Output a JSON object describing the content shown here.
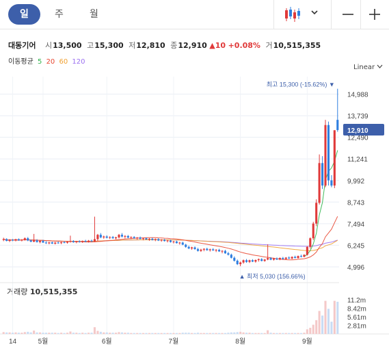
{
  "tabs": [
    {
      "label": "일",
      "active": true
    },
    {
      "label": "주",
      "active": false
    },
    {
      "label": "월",
      "active": false
    }
  ],
  "controls": {
    "chart_type_icon": "candlestick-icon",
    "chevron_icon": "chevron-down-icon",
    "minus_icon": "minus-icon",
    "plus_icon": "plus-icon"
  },
  "stock": {
    "name": "대동기어",
    "open_label": "시",
    "open": "13,500",
    "high_label": "고",
    "high": "15,300",
    "low_label": "저",
    "low": "12,810",
    "close_label": "종",
    "close": "12,910",
    "change": "▲10",
    "change_pct": "+0.08%",
    "volume_label": "거",
    "volume": "10,515,355"
  },
  "ma_legend": {
    "label": "이동평균",
    "items": [
      {
        "name": "5",
        "color": "#2db24a"
      },
      {
        "name": "20",
        "color": "#e8452f"
      },
      {
        "name": "60",
        "color": "#f0a030"
      },
      {
        "name": "120",
        "color": "#9a6ff0"
      }
    ]
  },
  "scale_mode": "Linear",
  "colors": {
    "up": "#e03a3a",
    "down": "#2f7fe0",
    "price_tag": "#3d5faa",
    "grid": "#e9eef5"
  },
  "chart_data": {
    "type": "candlestick",
    "x_ticks": [
      {
        "label": "14",
        "index": 3
      },
      {
        "label": "5월",
        "index": 13
      },
      {
        "label": "6월",
        "index": 34
      },
      {
        "label": "7월",
        "index": 56
      },
      {
        "label": "8월",
        "index": 78
      },
      {
        "label": "9월",
        "index": 100
      }
    ],
    "y_ticks": [
      14988,
      13739,
      12490,
      11241,
      9992,
      8743,
      7494,
      6245,
      4996
    ],
    "ylim": [
      4400,
      16000
    ],
    "vol_ticks": [
      {
        "label": "11.2m",
        "value": 11.2
      },
      {
        "label": "8.42m",
        "value": 8.42
      },
      {
        "label": "5.61m",
        "value": 5.61
      },
      {
        "label": "2.81m",
        "value": 2.81
      }
    ],
    "vol_max": 12.5,
    "current_price_label": "12,910",
    "current_price": 12910,
    "high_note": {
      "text": "최고 15,300 (-15.62%)",
      "value": 15300
    },
    "low_note": {
      "text": "최저 5,030 (156.66%)",
      "value": 5030
    },
    "volume_title": "거래량",
    "volume_value": "10,515,355",
    "candles": [
      {
        "o": 6550,
        "h": 6680,
        "l": 6480,
        "c": 6600,
        "v": 0.6
      },
      {
        "o": 6600,
        "h": 6650,
        "l": 6470,
        "c": 6500,
        "v": 0.5
      },
      {
        "o": 6500,
        "h": 6600,
        "l": 6430,
        "c": 6560,
        "v": 0.5
      },
      {
        "o": 6560,
        "h": 6610,
        "l": 6480,
        "c": 6520,
        "v": 0.4
      },
      {
        "o": 6520,
        "h": 6620,
        "l": 6470,
        "c": 6590,
        "v": 0.5
      },
      {
        "o": 6590,
        "h": 6640,
        "l": 6500,
        "c": 6530,
        "v": 0.4
      },
      {
        "o": 6530,
        "h": 6600,
        "l": 6470,
        "c": 6560,
        "v": 0.4
      },
      {
        "o": 6560,
        "h": 6700,
        "l": 6510,
        "c": 6650,
        "v": 0.6
      },
      {
        "o": 6650,
        "h": 6720,
        "l": 6480,
        "c": 6520,
        "v": 0.7
      },
      {
        "o": 6520,
        "h": 6580,
        "l": 6420,
        "c": 6450,
        "v": 0.5
      },
      {
        "o": 6450,
        "h": 6900,
        "l": 6420,
        "c": 6530,
        "v": 1.1
      },
      {
        "o": 6530,
        "h": 6600,
        "l": 6400,
        "c": 6430,
        "v": 0.5
      },
      {
        "o": 6430,
        "h": 6550,
        "l": 6360,
        "c": 6500,
        "v": 0.5
      },
      {
        "o": 6500,
        "h": 6560,
        "l": 6380,
        "c": 6400,
        "v": 0.4
      },
      {
        "o": 6400,
        "h": 6480,
        "l": 6320,
        "c": 6360,
        "v": 0.4
      },
      {
        "o": 6360,
        "h": 6440,
        "l": 6300,
        "c": 6410,
        "v": 0.4
      },
      {
        "o": 6410,
        "h": 6460,
        "l": 6320,
        "c": 6340,
        "v": 0.4
      },
      {
        "o": 6340,
        "h": 6430,
        "l": 6290,
        "c": 6400,
        "v": 0.4
      },
      {
        "o": 6400,
        "h": 6460,
        "l": 6330,
        "c": 6370,
        "v": 0.3
      },
      {
        "o": 6370,
        "h": 6450,
        "l": 6310,
        "c": 6420,
        "v": 0.4
      },
      {
        "o": 6420,
        "h": 6490,
        "l": 6360,
        "c": 6390,
        "v": 0.3
      },
      {
        "o": 6390,
        "h": 6470,
        "l": 6340,
        "c": 6440,
        "v": 0.4
      },
      {
        "o": 6440,
        "h": 6800,
        "l": 6400,
        "c": 6480,
        "v": 0.8
      },
      {
        "o": 6480,
        "h": 6540,
        "l": 6390,
        "c": 6420,
        "v": 0.4
      },
      {
        "o": 6420,
        "h": 6500,
        "l": 6360,
        "c": 6470,
        "v": 0.4
      },
      {
        "o": 6470,
        "h": 6530,
        "l": 6400,
        "c": 6430,
        "v": 0.3
      },
      {
        "o": 6430,
        "h": 6520,
        "l": 6380,
        "c": 6490,
        "v": 0.4
      },
      {
        "o": 6490,
        "h": 6560,
        "l": 6420,
        "c": 6450,
        "v": 0.3
      },
      {
        "o": 6450,
        "h": 6550,
        "l": 6400,
        "c": 6510,
        "v": 0.4
      },
      {
        "o": 6510,
        "h": 6570,
        "l": 6440,
        "c": 6470,
        "v": 0.4
      },
      {
        "o": 6470,
        "h": 7900,
        "l": 6430,
        "c": 6600,
        "v": 2.2
      },
      {
        "o": 6600,
        "h": 6900,
        "l": 6500,
        "c": 6850,
        "v": 1.0
      },
      {
        "o": 6850,
        "h": 6950,
        "l": 6650,
        "c": 6700,
        "v": 0.7
      },
      {
        "o": 6700,
        "h": 6800,
        "l": 6620,
        "c": 6750,
        "v": 0.5
      },
      {
        "o": 6750,
        "h": 6820,
        "l": 6640,
        "c": 6680,
        "v": 0.5
      },
      {
        "o": 6680,
        "h": 6760,
        "l": 6600,
        "c": 6720,
        "v": 0.4
      },
      {
        "o": 6720,
        "h": 6780,
        "l": 6620,
        "c": 6650,
        "v": 0.4
      },
      {
        "o": 6650,
        "h": 6740,
        "l": 6580,
        "c": 6700,
        "v": 0.4
      },
      {
        "o": 6700,
        "h": 6900,
        "l": 6640,
        "c": 6850,
        "v": 0.6
      },
      {
        "o": 6850,
        "h": 6950,
        "l": 6700,
        "c": 6750,
        "v": 0.5
      },
      {
        "o": 6750,
        "h": 6830,
        "l": 6640,
        "c": 6780,
        "v": 0.4
      },
      {
        "o": 6780,
        "h": 6840,
        "l": 6650,
        "c": 6690,
        "v": 0.4
      },
      {
        "o": 6690,
        "h": 6760,
        "l": 6600,
        "c": 6720,
        "v": 0.3
      },
      {
        "o": 6720,
        "h": 6770,
        "l": 6620,
        "c": 6650,
        "v": 0.3
      },
      {
        "o": 6650,
        "h": 6720,
        "l": 6570,
        "c": 6690,
        "v": 0.3
      },
      {
        "o": 6690,
        "h": 6750,
        "l": 6590,
        "c": 6610,
        "v": 0.3
      },
      {
        "o": 6610,
        "h": 6680,
        "l": 6530,
        "c": 6650,
        "v": 0.3
      },
      {
        "o": 6650,
        "h": 6700,
        "l": 6560,
        "c": 6580,
        "v": 0.3
      },
      {
        "o": 6580,
        "h": 6660,
        "l": 6500,
        "c": 6620,
        "v": 0.3
      },
      {
        "o": 6620,
        "h": 6680,
        "l": 6520,
        "c": 6550,
        "v": 0.3
      },
      {
        "o": 6550,
        "h": 6640,
        "l": 6480,
        "c": 6600,
        "v": 0.3
      },
      {
        "o": 6600,
        "h": 6650,
        "l": 6490,
        "c": 6520,
        "v": 0.3
      },
      {
        "o": 6520,
        "h": 6600,
        "l": 6450,
        "c": 6560,
        "v": 0.3
      },
      {
        "o": 6560,
        "h": 6610,
        "l": 6460,
        "c": 6490,
        "v": 0.3
      },
      {
        "o": 6490,
        "h": 6560,
        "l": 6410,
        "c": 6520,
        "v": 0.3
      },
      {
        "o": 6520,
        "h": 6570,
        "l": 6400,
        "c": 6430,
        "v": 0.3
      },
      {
        "o": 6430,
        "h": 6500,
        "l": 6350,
        "c": 6460,
        "v": 0.3
      },
      {
        "o": 6460,
        "h": 6510,
        "l": 6340,
        "c": 6370,
        "v": 0.3
      },
      {
        "o": 6370,
        "h": 6440,
        "l": 6280,
        "c": 6400,
        "v": 0.3
      },
      {
        "o": 6400,
        "h": 6450,
        "l": 6250,
        "c": 6280,
        "v": 0.4
      },
      {
        "o": 6280,
        "h": 6330,
        "l": 6100,
        "c": 6150,
        "v": 0.4
      },
      {
        "o": 6150,
        "h": 6220,
        "l": 6020,
        "c": 6060,
        "v": 0.4
      },
      {
        "o": 6060,
        "h": 6160,
        "l": 5980,
        "c": 6120,
        "v": 0.3
      },
      {
        "o": 6120,
        "h": 6180,
        "l": 5990,
        "c": 6020,
        "v": 0.3
      },
      {
        "o": 6020,
        "h": 6100,
        "l": 5880,
        "c": 5920,
        "v": 0.4
      },
      {
        "o": 5920,
        "h": 6040,
        "l": 5860,
        "c": 5990,
        "v": 0.3
      },
      {
        "o": 5990,
        "h": 6070,
        "l": 5900,
        "c": 6040,
        "v": 0.3
      },
      {
        "o": 6040,
        "h": 6100,
        "l": 5930,
        "c": 5960,
        "v": 0.3
      },
      {
        "o": 5960,
        "h": 6050,
        "l": 5880,
        "c": 6010,
        "v": 0.3
      },
      {
        "o": 6010,
        "h": 6080,
        "l": 5920,
        "c": 5950,
        "v": 0.3
      },
      {
        "o": 5950,
        "h": 6020,
        "l": 5850,
        "c": 5980,
        "v": 0.3
      },
      {
        "o": 5980,
        "h": 6040,
        "l": 5860,
        "c": 5890,
        "v": 0.3
      },
      {
        "o": 5890,
        "h": 5960,
        "l": 5780,
        "c": 5920,
        "v": 0.3
      },
      {
        "o": 5920,
        "h": 5980,
        "l": 5750,
        "c": 5780,
        "v": 0.3
      },
      {
        "o": 5780,
        "h": 5860,
        "l": 5650,
        "c": 5700,
        "v": 0.4
      },
      {
        "o": 5700,
        "h": 5760,
        "l": 5480,
        "c": 5520,
        "v": 0.5
      },
      {
        "o": 5520,
        "h": 5600,
        "l": 5300,
        "c": 5350,
        "v": 0.5
      },
      {
        "o": 5350,
        "h": 5420,
        "l": 5100,
        "c": 5150,
        "v": 0.6
      },
      {
        "o": 5150,
        "h": 5300,
        "l": 5030,
        "c": 5250,
        "v": 0.7
      },
      {
        "o": 5250,
        "h": 5420,
        "l": 5180,
        "c": 5380,
        "v": 0.5
      },
      {
        "o": 5380,
        "h": 5450,
        "l": 5230,
        "c": 5280,
        "v": 0.4
      },
      {
        "o": 5280,
        "h": 5410,
        "l": 5220,
        "c": 5380,
        "v": 0.4
      },
      {
        "o": 5380,
        "h": 5440,
        "l": 5270,
        "c": 5300,
        "v": 0.3
      },
      {
        "o": 5300,
        "h": 5420,
        "l": 5240,
        "c": 5390,
        "v": 0.3
      },
      {
        "o": 5390,
        "h": 5480,
        "l": 5300,
        "c": 5440,
        "v": 0.3
      },
      {
        "o": 5440,
        "h": 5500,
        "l": 5310,
        "c": 5340,
        "v": 0.3
      },
      {
        "o": 5340,
        "h": 5450,
        "l": 5290,
        "c": 5420,
        "v": 0.3
      },
      {
        "o": 5420,
        "h": 6300,
        "l": 5380,
        "c": 5500,
        "v": 1.2
      },
      {
        "o": 5500,
        "h": 5560,
        "l": 5380,
        "c": 5410,
        "v": 0.4
      },
      {
        "o": 5410,
        "h": 5520,
        "l": 5360,
        "c": 5480,
        "v": 0.3
      },
      {
        "o": 5480,
        "h": 5540,
        "l": 5390,
        "c": 5420,
        "v": 0.3
      },
      {
        "o": 5420,
        "h": 5540,
        "l": 5380,
        "c": 5510,
        "v": 0.3
      },
      {
        "o": 5510,
        "h": 5570,
        "l": 5420,
        "c": 5450,
        "v": 0.3
      },
      {
        "o": 5450,
        "h": 5560,
        "l": 5410,
        "c": 5530,
        "v": 0.3
      },
      {
        "o": 5530,
        "h": 5600,
        "l": 5450,
        "c": 5480,
        "v": 0.3
      },
      {
        "o": 5480,
        "h": 5600,
        "l": 5440,
        "c": 5570,
        "v": 0.3
      },
      {
        "o": 5570,
        "h": 5640,
        "l": 5480,
        "c": 5510,
        "v": 0.3
      },
      {
        "o": 5510,
        "h": 5650,
        "l": 5470,
        "c": 5620,
        "v": 0.3
      },
      {
        "o": 5620,
        "h": 5700,
        "l": 5540,
        "c": 5580,
        "v": 0.3
      },
      {
        "o": 5580,
        "h": 5720,
        "l": 5550,
        "c": 5690,
        "v": 0.4
      },
      {
        "o": 5690,
        "h": 6200,
        "l": 5650,
        "c": 6150,
        "v": 1.5
      },
      {
        "o": 6150,
        "h": 6700,
        "l": 6050,
        "c": 6650,
        "v": 2.0
      },
      {
        "o": 6650,
        "h": 7600,
        "l": 6550,
        "c": 7500,
        "v": 3.0
      },
      {
        "o": 7500,
        "h": 8900,
        "l": 7350,
        "c": 8700,
        "v": 4.5
      },
      {
        "o": 8700,
        "h": 11500,
        "l": 8600,
        "c": 11000,
        "v": 7.5
      },
      {
        "o": 11000,
        "h": 11400,
        "l": 9500,
        "c": 9700,
        "v": 6.0
      },
      {
        "o": 9700,
        "h": 13500,
        "l": 9600,
        "c": 13200,
        "v": 10.8
      },
      {
        "o": 13200,
        "h": 13400,
        "l": 9700,
        "c": 10000,
        "v": 8.2
      },
      {
        "o": 10000,
        "h": 10300,
        "l": 9600,
        "c": 9700,
        "v": 4.0
      },
      {
        "o": 9700,
        "h": 12900,
        "l": 9550,
        "c": 12900,
        "v": 10.8
      },
      {
        "o": 13500,
        "h": 15300,
        "l": 12810,
        "c": 12910,
        "v": 10.5
      }
    ]
  }
}
